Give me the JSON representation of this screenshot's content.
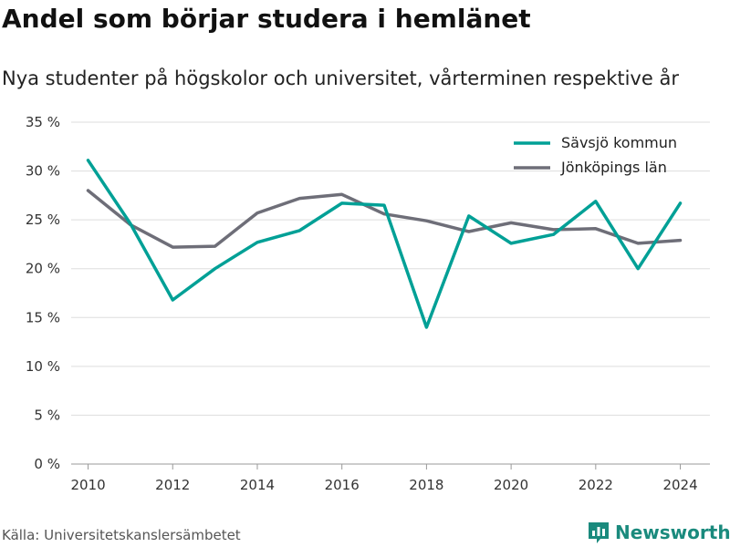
{
  "title": "Andel som börjar studera i hemlänet",
  "subtitle": "Nya studenter på högskolor och universitet, vårterminen respektive år",
  "source": "Källa: Universitetskanslersämbetet",
  "brand": "Newsworthy",
  "colors": {
    "savsjo": "#00a096",
    "jonkoping": "#6e6e78",
    "grid": "#dddddd",
    "brand": "#1a8a7d"
  },
  "chart_data": {
    "type": "line",
    "x": [
      2010,
      2011,
      2012,
      2013,
      2014,
      2015,
      2016,
      2017,
      2018,
      2019,
      2020,
      2021,
      2022,
      2023,
      2024
    ],
    "x_ticks": [
      2010,
      2012,
      2014,
      2016,
      2018,
      2020,
      2022,
      2024
    ],
    "x_tick_labels": [
      "2010",
      "2012",
      "2014",
      "2016",
      "2018",
      "2020",
      "2022",
      "2024"
    ],
    "xlim": [
      2009.6,
      2024.7
    ],
    "ylim": [
      0,
      35
    ],
    "y_ticks": [
      0,
      5,
      10,
      15,
      20,
      25,
      30,
      35
    ],
    "y_tick_labels": [
      "0 %",
      "5 %",
      "10 %",
      "15 %",
      "20 %",
      "25 %",
      "30 %",
      "35 %"
    ],
    "grid": true,
    "legend_position": "top-right",
    "series": [
      {
        "name": "Sävsjö kommun",
        "color": "#00a096",
        "values": [
          31.1,
          24.6,
          16.8,
          20.0,
          22.7,
          23.9,
          26.7,
          26.5,
          14.0,
          25.4,
          22.6,
          23.5,
          26.9,
          20.0,
          26.7
        ]
      },
      {
        "name": "Jönköpings län",
        "color": "#6e6e78",
        "values": [
          28.0,
          24.5,
          22.2,
          22.3,
          25.7,
          27.2,
          27.6,
          25.6,
          24.9,
          23.8,
          24.7,
          24.0,
          24.1,
          22.6,
          22.9
        ]
      }
    ]
  }
}
